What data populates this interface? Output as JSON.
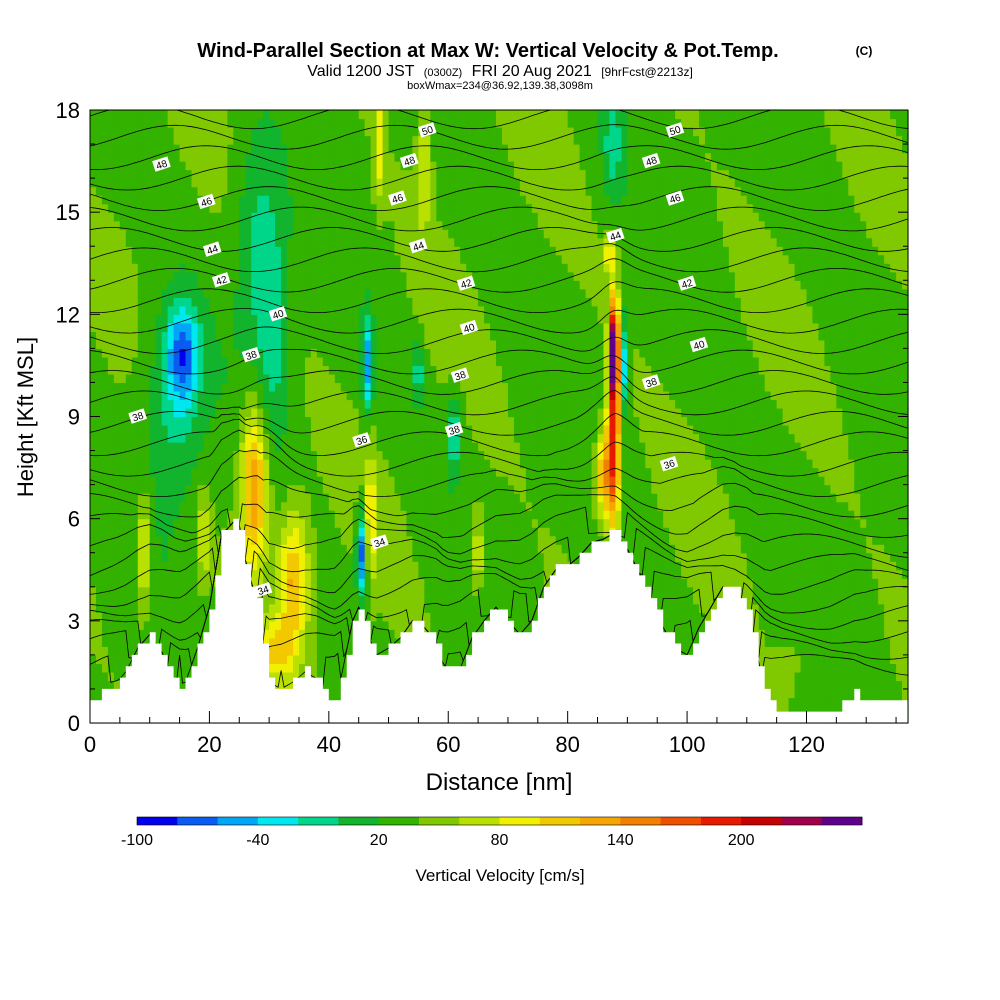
{
  "chart_data": {
    "type": "heatmap",
    "title": "Wind-Parallel Section at Max W: Vertical Velocity & Pot.Temp.",
    "title_mark": "(C)",
    "subtitle": {
      "valid": "Valid 1200 JST",
      "utc": "(0300Z)",
      "date": "FRI 20 Aug 2021",
      "fcst": "[9hrFcst@2213z]"
    },
    "boxinfo": "boxWmax=234@36.92,139.38,3098m",
    "xlabel": "Distance [nm]",
    "ylabel": "Height [Kft MSL]",
    "xlim": [
      0,
      137
    ],
    "ylim": [
      0,
      18
    ],
    "x_ticks": [
      "0",
      "20",
      "40",
      "60",
      "80",
      "100",
      "120"
    ],
    "y_ticks": [
      "0",
      "3",
      "6",
      "9",
      "12",
      "15",
      "18"
    ],
    "colorbar": {
      "label": "Vertical Velocity [cm/s]",
      "tick_labels": [
        "-100",
        "-40",
        "20",
        "80",
        "140",
        "200"
      ],
      "colors": [
        "#0000ee",
        "#0a5cf0",
        "#00a6f5",
        "#00e8ef",
        "#00d68a",
        "#12b42e",
        "#33b200",
        "#80c800",
        "#b8e000",
        "#f0f000",
        "#f2c800",
        "#f5a600",
        "#f28000",
        "#ef5000",
        "#e61a00",
        "#c40000",
        "#a0004a",
        "#60008a"
      ]
    },
    "terrain_kft": [
      [
        0,
        0.6
      ],
      [
        2,
        0.9
      ],
      [
        4,
        1.1
      ],
      [
        6,
        1.5
      ],
      [
        8,
        2.2
      ],
      [
        10,
        2.6
      ],
      [
        12,
        2.1
      ],
      [
        14,
        1.3
      ],
      [
        15,
        1.0
      ],
      [
        16,
        1.2
      ],
      [
        18,
        2.2
      ],
      [
        20,
        3.4
      ],
      [
        22,
        5.5
      ],
      [
        24,
        5.9
      ],
      [
        25,
        5.8
      ],
      [
        26,
        4.8
      ],
      [
        28,
        3.5
      ],
      [
        30,
        1.2
      ],
      [
        32,
        1.0
      ],
      [
        34,
        1.2
      ],
      [
        36,
        1.5
      ],
      [
        38,
        1.3
      ],
      [
        40,
        0.8
      ],
      [
        41,
        0.7
      ],
      [
        42,
        1.3
      ],
      [
        44,
        3.0
      ],
      [
        45,
        3.4
      ],
      [
        47,
        2.4
      ],
      [
        48,
        2.0
      ],
      [
        50,
        2.2
      ],
      [
        52,
        2.5
      ],
      [
        54,
        3.0
      ],
      [
        56,
        2.8
      ],
      [
        58,
        2.4
      ],
      [
        59,
        1.8
      ],
      [
        60,
        1.5
      ],
      [
        62,
        1.6
      ],
      [
        64,
        2.5
      ],
      [
        66,
        3.0
      ],
      [
        68,
        3.4
      ],
      [
        70,
        3.0
      ],
      [
        72,
        2.6
      ],
      [
        74,
        3.0
      ],
      [
        76,
        4.0
      ],
      [
        78,
        4.5
      ],
      [
        80,
        4.6
      ],
      [
        82,
        4.9
      ],
      [
        84,
        5.3
      ],
      [
        86,
        5.4
      ],
      [
        88,
        5.6
      ],
      [
        90,
        5.1
      ],
      [
        92,
        4.4
      ],
      [
        94,
        3.6
      ],
      [
        96,
        2.8
      ],
      [
        98,
        2.2
      ],
      [
        100,
        2.0
      ],
      [
        102,
        2.8
      ],
      [
        104,
        3.4
      ],
      [
        106,
        4.0
      ],
      [
        108,
        3.9
      ],
      [
        110,
        3.2
      ],
      [
        112,
        1.8
      ],
      [
        113,
        1.0
      ],
      [
        114,
        0.6
      ],
      [
        116,
        0.3
      ],
      [
        120,
        0.3
      ],
      [
        124,
        0.3
      ],
      [
        126,
        0.6
      ],
      [
        128,
        0.9
      ],
      [
        130,
        0.7
      ],
      [
        132,
        0.7
      ],
      [
        137,
        0.7
      ]
    ],
    "background_w_cms": 15,
    "w_cells_cms": [
      {
        "x": 15.5,
        "y": 10.8,
        "sx": 2.6,
        "sy": 1.4,
        "w": -70
      },
      {
        "x": 14,
        "y": 9.2,
        "sx": 5,
        "sy": 3,
        "w": -30
      },
      {
        "x": 9,
        "y": 5.0,
        "sx": 1.3,
        "sy": 1.8,
        "w": 75
      },
      {
        "x": 19,
        "y": 5.5,
        "sx": 1.1,
        "sy": 1.3,
        "w": 60
      },
      {
        "x": 27.5,
        "y": 7.0,
        "sx": 2.2,
        "sy": 2.4,
        "w": 125
      },
      {
        "x": 34,
        "y": 4.2,
        "sx": 2.6,
        "sy": 2.0,
        "w": 105
      },
      {
        "x": 31,
        "y": 2.2,
        "sx": 3,
        "sy": 0.8,
        "w": 75
      },
      {
        "x": 30.5,
        "y": 11.5,
        "sx": 3,
        "sy": 3,
        "w": -30
      },
      {
        "x": 28,
        "y": 14.5,
        "sx": 4,
        "sy": 3,
        "w": -25
      },
      {
        "x": 45.5,
        "y": 5.0,
        "sx": 0.9,
        "sy": 1.2,
        "w": -95
      },
      {
        "x": 46.5,
        "y": 10.5,
        "sx": 0.9,
        "sy": 1.4,
        "w": -70
      },
      {
        "x": 47,
        "y": 6.0,
        "sx": 0.7,
        "sy": 1.8,
        "w": 95
      },
      {
        "x": 48.5,
        "y": 17.0,
        "sx": 0.8,
        "sy": 1.6,
        "w": 75
      },
      {
        "x": 56,
        "y": 16.5,
        "sx": 1.2,
        "sy": 2.2,
        "w": 55
      },
      {
        "x": 55,
        "y": 10.3,
        "sx": 0.7,
        "sy": 0.9,
        "w": -50
      },
      {
        "x": 61,
        "y": 8.5,
        "sx": 1.2,
        "sy": 1.2,
        "w": -40
      },
      {
        "x": 65,
        "y": 5.0,
        "sx": 1,
        "sy": 1.2,
        "w": 70
      },
      {
        "x": 87.7,
        "y": 8.5,
        "sx": 1.1,
        "sy": 3.2,
        "w": 160
      },
      {
        "x": 87.8,
        "y": 11.0,
        "sx": 0.7,
        "sy": 1.3,
        "w": 210
      },
      {
        "x": 89.6,
        "y": 10.5,
        "sx": 0.7,
        "sy": 1.5,
        "w": -60
      },
      {
        "x": 86,
        "y": 7.3,
        "sx": 1.4,
        "sy": 1.3,
        "w": 110
      },
      {
        "x": 87.5,
        "y": 17.0,
        "sx": 1.8,
        "sy": 1.8,
        "w": -25
      },
      {
        "x": 87,
        "y": 13.8,
        "sx": 0.8,
        "sy": 0.6,
        "w": 80
      },
      {
        "x": 118,
        "y": 2.0,
        "sx": 3,
        "sy": 1,
        "w": 25
      }
    ],
    "theta_contours_c": [
      {
        "level": 34,
        "label": "34",
        "z": 4.0
      },
      {
        "level": 36,
        "label": "36",
        "z": 8.0
      },
      {
        "level": 38,
        "label": "38",
        "z": 9.5
      },
      {
        "level": 40,
        "label": "40",
        "z": 11.4
      },
      {
        "level": 42,
        "label": "42",
        "z": 12.9
      },
      {
        "level": 44,
        "label": "44",
        "z": 14.1
      },
      {
        "level": 46,
        "label": "46",
        "z": 15.3
      },
      {
        "level": 48,
        "label": "48",
        "z": 16.4
      },
      {
        "level": 50,
        "label": "50",
        "z": 17.3
      }
    ],
    "contour_labels": [
      {
        "text": "48",
        "x": 12,
        "y": 16.4
      },
      {
        "text": "46",
        "x": 19.5,
        "y": 15.3
      },
      {
        "text": "44",
        "x": 20.5,
        "y": 13.9
      },
      {
        "text": "42",
        "x": 22,
        "y": 13.0
      },
      {
        "text": "40",
        "x": 31.5,
        "y": 12.0
      },
      {
        "text": "38",
        "x": 27,
        "y": 10.8
      },
      {
        "text": "38",
        "x": 8,
        "y": 9.0
      },
      {
        "text": "50",
        "x": 56.5,
        "y": 17.4
      },
      {
        "text": "48",
        "x": 53.5,
        "y": 16.5
      },
      {
        "text": "46",
        "x": 51.5,
        "y": 15.4
      },
      {
        "text": "44",
        "x": 55,
        "y": 14.0
      },
      {
        "text": "42",
        "x": 63,
        "y": 12.9
      },
      {
        "text": "40",
        "x": 63.5,
        "y": 11.6
      },
      {
        "text": "38",
        "x": 62,
        "y": 10.2
      },
      {
        "text": "38",
        "x": 61,
        "y": 8.6
      },
      {
        "text": "36",
        "x": 45.5,
        "y": 8.3
      },
      {
        "text": "34",
        "x": 48.5,
        "y": 5.3
      },
      {
        "text": "34",
        "x": 29,
        "y": 3.9
      },
      {
        "text": "50",
        "x": 98,
        "y": 17.4
      },
      {
        "text": "48",
        "x": 94,
        "y": 16.5
      },
      {
        "text": "46",
        "x": 98,
        "y": 15.4
      },
      {
        "text": "44",
        "x": 88,
        "y": 14.3
      },
      {
        "text": "42",
        "x": 100,
        "y": 12.9
      },
      {
        "text": "40",
        "x": 102,
        "y": 11.1
      },
      {
        "text": "38",
        "x": 94,
        "y": 10.0
      },
      {
        "text": "36",
        "x": 97,
        "y": 7.6
      }
    ]
  }
}
